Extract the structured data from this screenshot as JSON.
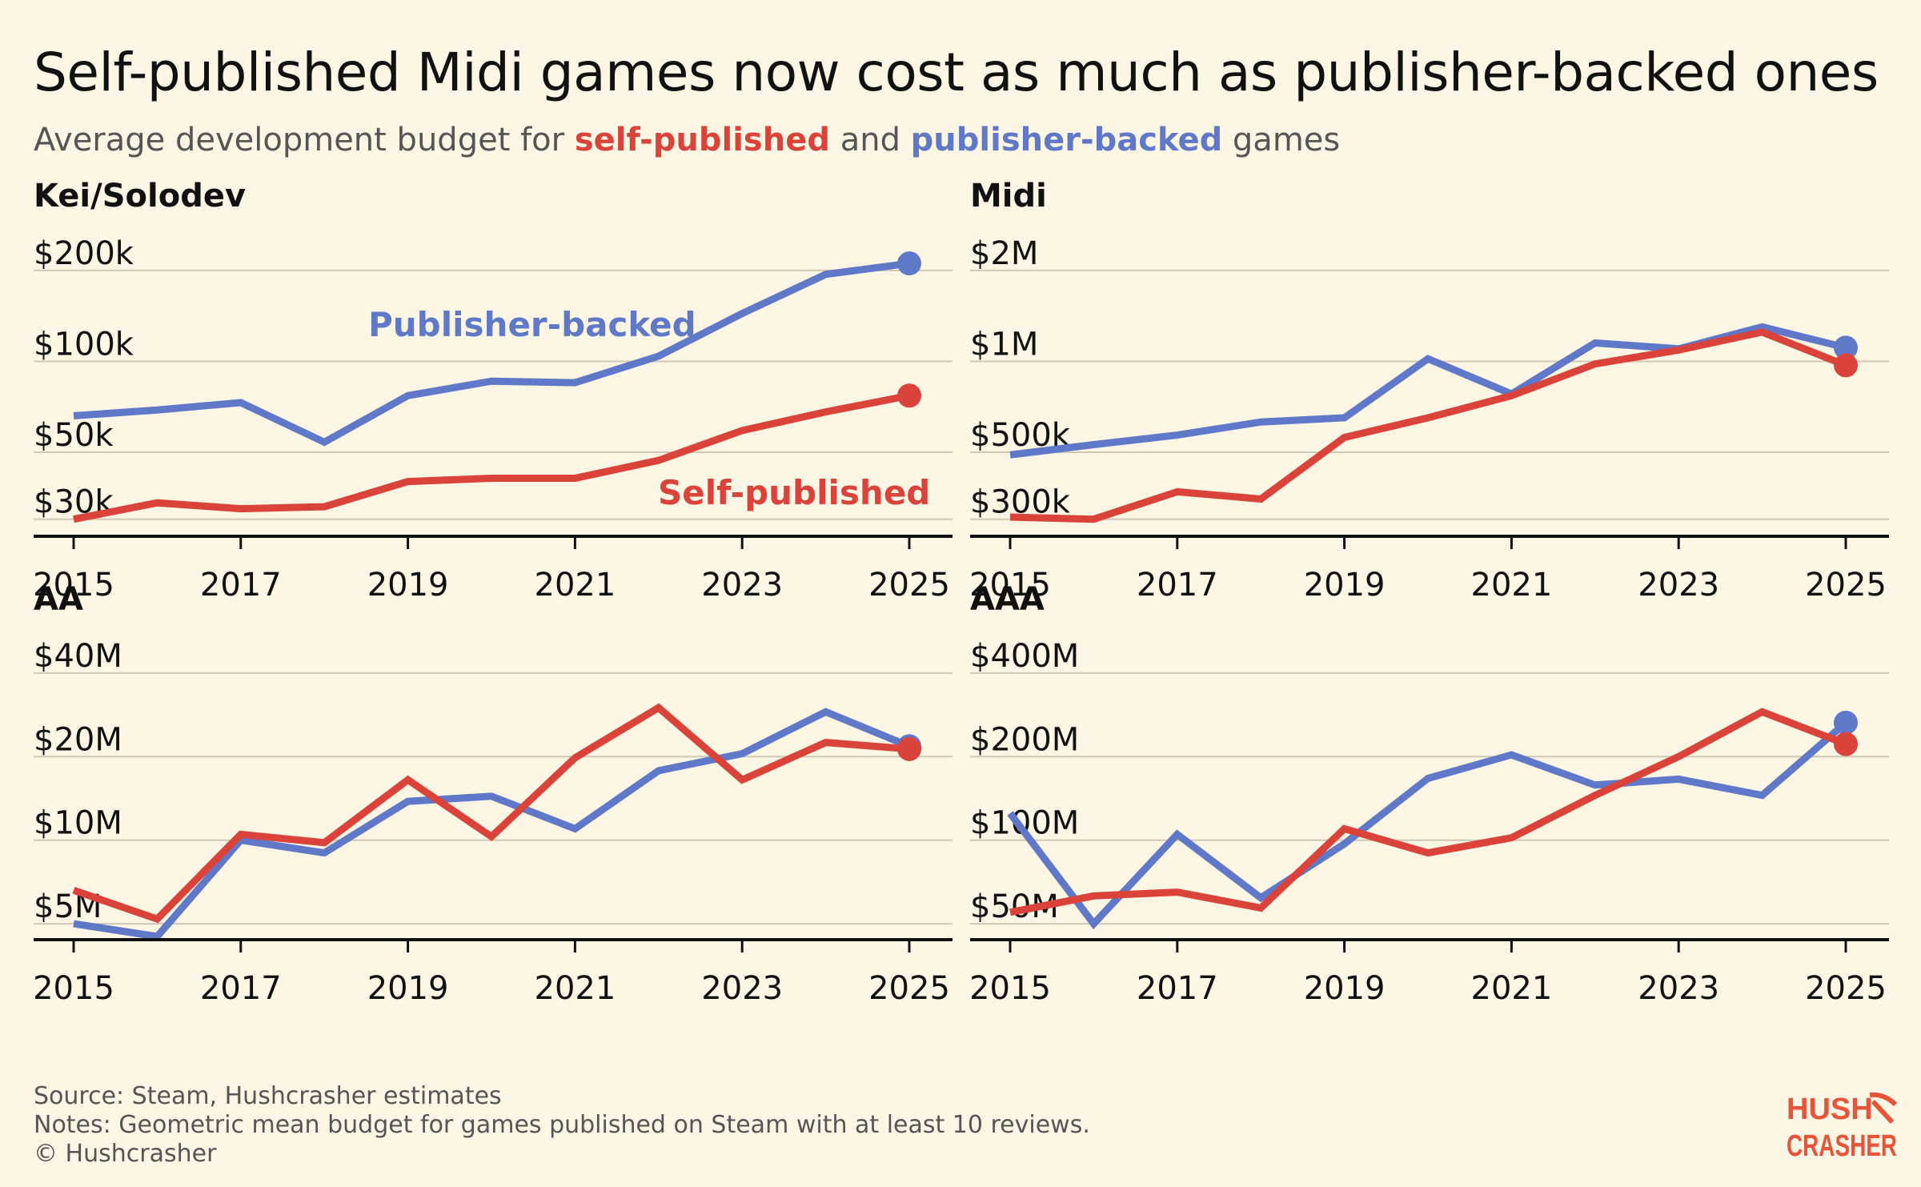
{
  "title": "Self-published Midi games now cost as much as publisher-backed ones",
  "subtitle": {
    "prefix": "Average development budget for ",
    "self_label": "self-published",
    "middle": " and ",
    "pub_label": "publisher-backed",
    "suffix": " games"
  },
  "colors": {
    "self": "#d9433a",
    "publisher": "#6078c8",
    "background": "#fdf6e4",
    "grid": "#cfc8b4"
  },
  "footer": {
    "source": "Source: Steam, Hushcrasher estimates",
    "notes": "Notes: Geometric mean budget for games published on Steam with at least 10 reviews.",
    "copyright": "© Hushcrasher"
  },
  "logo": {
    "line1": "HUSH",
    "line2": "CRASHER",
    "icon": "pickaxe-icon"
  },
  "chart_data": [
    {
      "type": "line",
      "title": "Kei/Solodev",
      "scale": "log",
      "ylim": [
        27000,
        215000
      ],
      "ticks": [
        {
          "value": 200000,
          "label": "$200k"
        },
        {
          "value": 100000,
          "label": "$100k"
        },
        {
          "value": 50000,
          "label": "$50k"
        },
        {
          "value": 30000,
          "label": "$30k"
        }
      ],
      "x": [
        2015,
        2016,
        2017,
        2018,
        2019,
        2020,
        2021,
        2022,
        2023,
        2024,
        2025
      ],
      "x_ticks": [
        "2015",
        "2017",
        "2019",
        "2021",
        "2023",
        "2025"
      ],
      "series": [
        {
          "name": "Publisher-backed",
          "color": "#6078c8",
          "values": [
            66000,
            69000,
            73000,
            54000,
            77000,
            86000,
            85000,
            104000,
            144000,
            194000,
            211000
          ]
        },
        {
          "name": "Self-published",
          "color": "#d9433a",
          "values": [
            30000,
            34000,
            32500,
            33000,
            40000,
            41000,
            41000,
            47000,
            59000,
            68000,
            77000
          ]
        }
      ],
      "annotations": [
        {
          "text": "Publisher-backed",
          "series": 0
        },
        {
          "text": "Self-published",
          "series": 1
        }
      ]
    },
    {
      "type": "line",
      "title": "Midi",
      "scale": "log",
      "ylim": [
        270000,
        2150000
      ],
      "ticks": [
        {
          "value": 2000000,
          "label": "$2M"
        },
        {
          "value": 1000000,
          "label": "$1M"
        },
        {
          "value": 500000,
          "label": "$500k"
        },
        {
          "value": 300000,
          "label": "$300k"
        }
      ],
      "x": [
        2015,
        2016,
        2017,
        2018,
        2019,
        2020,
        2021,
        2022,
        2023,
        2024,
        2025
      ],
      "x_ticks": [
        "2015",
        "2017",
        "2019",
        "2021",
        "2023",
        "2025"
      ],
      "series": [
        {
          "name": "Publisher-backed",
          "color": "#6078c8",
          "values": [
            490000,
            530000,
            570000,
            630000,
            650000,
            1020000,
            780000,
            1150000,
            1100000,
            1300000,
            1110000
          ]
        },
        {
          "name": "Self-published",
          "color": "#d9433a",
          "values": [
            305000,
            300000,
            370000,
            350000,
            560000,
            650000,
            770000,
            980000,
            1090000,
            1250000,
            970000
          ]
        }
      ]
    },
    {
      "type": "line",
      "title": "AA",
      "scale": "log",
      "ylim": [
        4500000,
        43000000
      ],
      "ticks": [
        {
          "value": 40000000,
          "label": "$40M"
        },
        {
          "value": 20000000,
          "label": "$20M"
        },
        {
          "value": 10000000,
          "label": "$10M"
        },
        {
          "value": 5000000,
          "label": "$5M"
        }
      ],
      "x": [
        2015,
        2016,
        2017,
        2018,
        2019,
        2020,
        2021,
        2022,
        2023,
        2024,
        2025
      ],
      "x_ticks": [
        "2015",
        "2017",
        "2019",
        "2021",
        "2023",
        "2025"
      ],
      "series": [
        {
          "name": "Publisher-backed",
          "color": "#6078c8",
          "values": [
            5000000,
            4500000,
            10000000,
            9000000,
            13800000,
            14400000,
            11000000,
            17800000,
            20500000,
            29000000,
            21800000
          ]
        },
        {
          "name": "Self-published",
          "color": "#d9433a",
          "values": [
            6600000,
            5200000,
            10500000,
            9800000,
            16500000,
            10300000,
            19800000,
            30000000,
            16500000,
            22500000,
            21300000
          ]
        }
      ]
    },
    {
      "type": "line",
      "title": "AAA",
      "scale": "log",
      "ylim": [
        45000000,
        430000000
      ],
      "ticks": [
        {
          "value": 400000000,
          "label": "$400M"
        },
        {
          "value": 200000000,
          "label": "$200M"
        },
        {
          "value": 100000000,
          "label": "$100M"
        },
        {
          "value": 50000000,
          "label": "$50M"
        }
      ],
      "x": [
        2015,
        2016,
        2017,
        2018,
        2019,
        2020,
        2021,
        2022,
        2023,
        2024,
        2025
      ],
      "x_ticks": [
        "2015",
        "2017",
        "2019",
        "2021",
        "2023",
        "2025"
      ],
      "series": [
        {
          "name": "Publisher-backed",
          "color": "#6078c8",
          "values": [
            125000000,
            50000000,
            105000000,
            62000000,
            97000000,
            167000000,
            203000000,
            158000000,
            166000000,
            145000000,
            265000000
          ]
        },
        {
          "name": "Self-published",
          "color": "#d9433a",
          "values": [
            55000000,
            63000000,
            65000000,
            57000000,
            110000000,
            90000000,
            102000000,
            145000000,
            200000000,
            290000000,
            222000000
          ]
        }
      ]
    }
  ]
}
